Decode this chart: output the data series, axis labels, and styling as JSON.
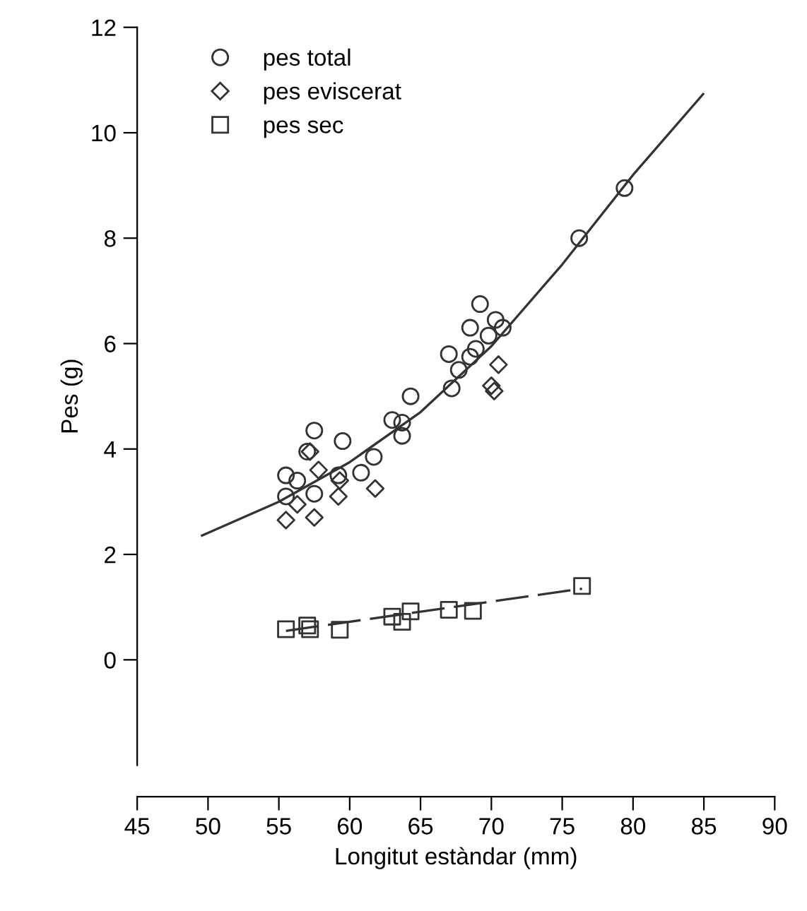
{
  "chart_data": {
    "type": "scatter",
    "xlabel": "Longitut estàndar (mm)",
    "ylabel": "Pes (g)",
    "xlim": [
      45,
      90
    ],
    "xticks": [
      45,
      50,
      55,
      60,
      65,
      70,
      75,
      80,
      85,
      90
    ],
    "ylim": [
      -2,
      12
    ],
    "yticks": [
      0,
      2,
      4,
      6,
      8,
      10,
      12
    ],
    "grid": false,
    "legend": "top left",
    "series": [
      {
        "name": "pes total",
        "color": "#333333",
        "marker": "circle",
        "x": [
          55.5,
          55.5,
          56.3,
          57,
          57.5,
          57.5,
          57.8,
          59.2,
          59.5,
          60.8,
          61.7,
          63,
          63.7,
          63.7,
          64.3,
          67,
          67.2,
          67.7,
          68.5,
          68.5,
          69.2,
          68.9,
          69.8,
          70,
          70.3,
          70.8,
          76.2,
          79.4
        ],
        "values": [
          3.5,
          3.1,
          3.4,
          3.95,
          4.35,
          3.15,
          null,
          3.5,
          4.15,
          3.55,
          3.85,
          4.55,
          4.5,
          4.25,
          5.0,
          5.8,
          5.15,
          5.5,
          6.3,
          5.75,
          6.75,
          5.9,
          6.15,
          null,
          6.45,
          6.3,
          8.0,
          8.95
        ]
      },
      {
        "name": "pes eviscerat",
        "color": "#333333",
        "marker": "diamond",
        "x": [
          55.5,
          56.3,
          57.2,
          57.5,
          57.8,
          59.2,
          59.3,
          61.8,
          70,
          70.2,
          70.5
        ],
        "values": [
          2.65,
          2.95,
          3.95,
          2.7,
          3.6,
          3.1,
          3.4,
          3.25,
          5.2,
          5.1,
          5.6
        ]
      },
      {
        "name": "pes sec",
        "color": "#333333",
        "marker": "square",
        "x": [
          55.5,
          57,
          57.2,
          59.3,
          63,
          63.7,
          64.3,
          67,
          68.7,
          76.4
        ],
        "values": [
          0.58,
          0.65,
          0.58,
          0.57,
          0.82,
          0.72,
          0.92,
          0.95,
          0.93,
          1.4
        ]
      },
      {
        "type": "line",
        "color": "#333333",
        "line_style": "solid",
        "x": [
          49.5,
          55,
          60,
          65,
          70,
          75,
          80,
          85
        ],
        "values": [
          2.35,
          3.0,
          3.75,
          4.7,
          5.95,
          7.5,
          9.2,
          10.75
        ]
      },
      {
        "type": "line",
        "color": "#333333",
        "line_style": "dashed",
        "x": [
          55.5,
          76.4
        ],
        "values": [
          0.55,
          1.35
        ]
      }
    ]
  }
}
